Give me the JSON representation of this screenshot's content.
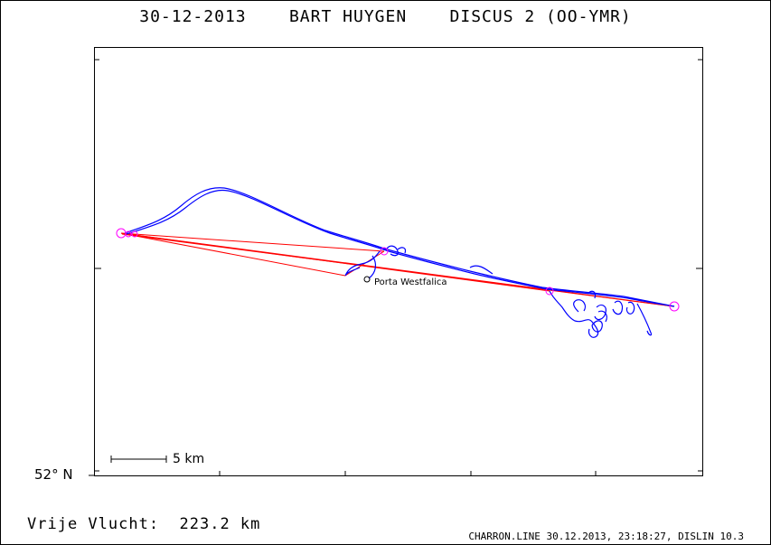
{
  "header": {
    "title": "30-12-2013    BART HUYGEN    DISCUS 2 (OO-YMR)"
  },
  "map": {
    "latitude_label": "52° N",
    "scale_bar_label": "5 km",
    "place_label": "Porta Westfalica",
    "track_color": "#0000ff",
    "task_line_color": "#ff0000",
    "turnpoint_color": "#ff00ff"
  },
  "footer": {
    "distance_text": "Vrije Vlucht:  223.2 km",
    "credit_text": "CHARRON.LINE 30.12.2013, 23:18:27, DISLIN 10.3"
  }
}
